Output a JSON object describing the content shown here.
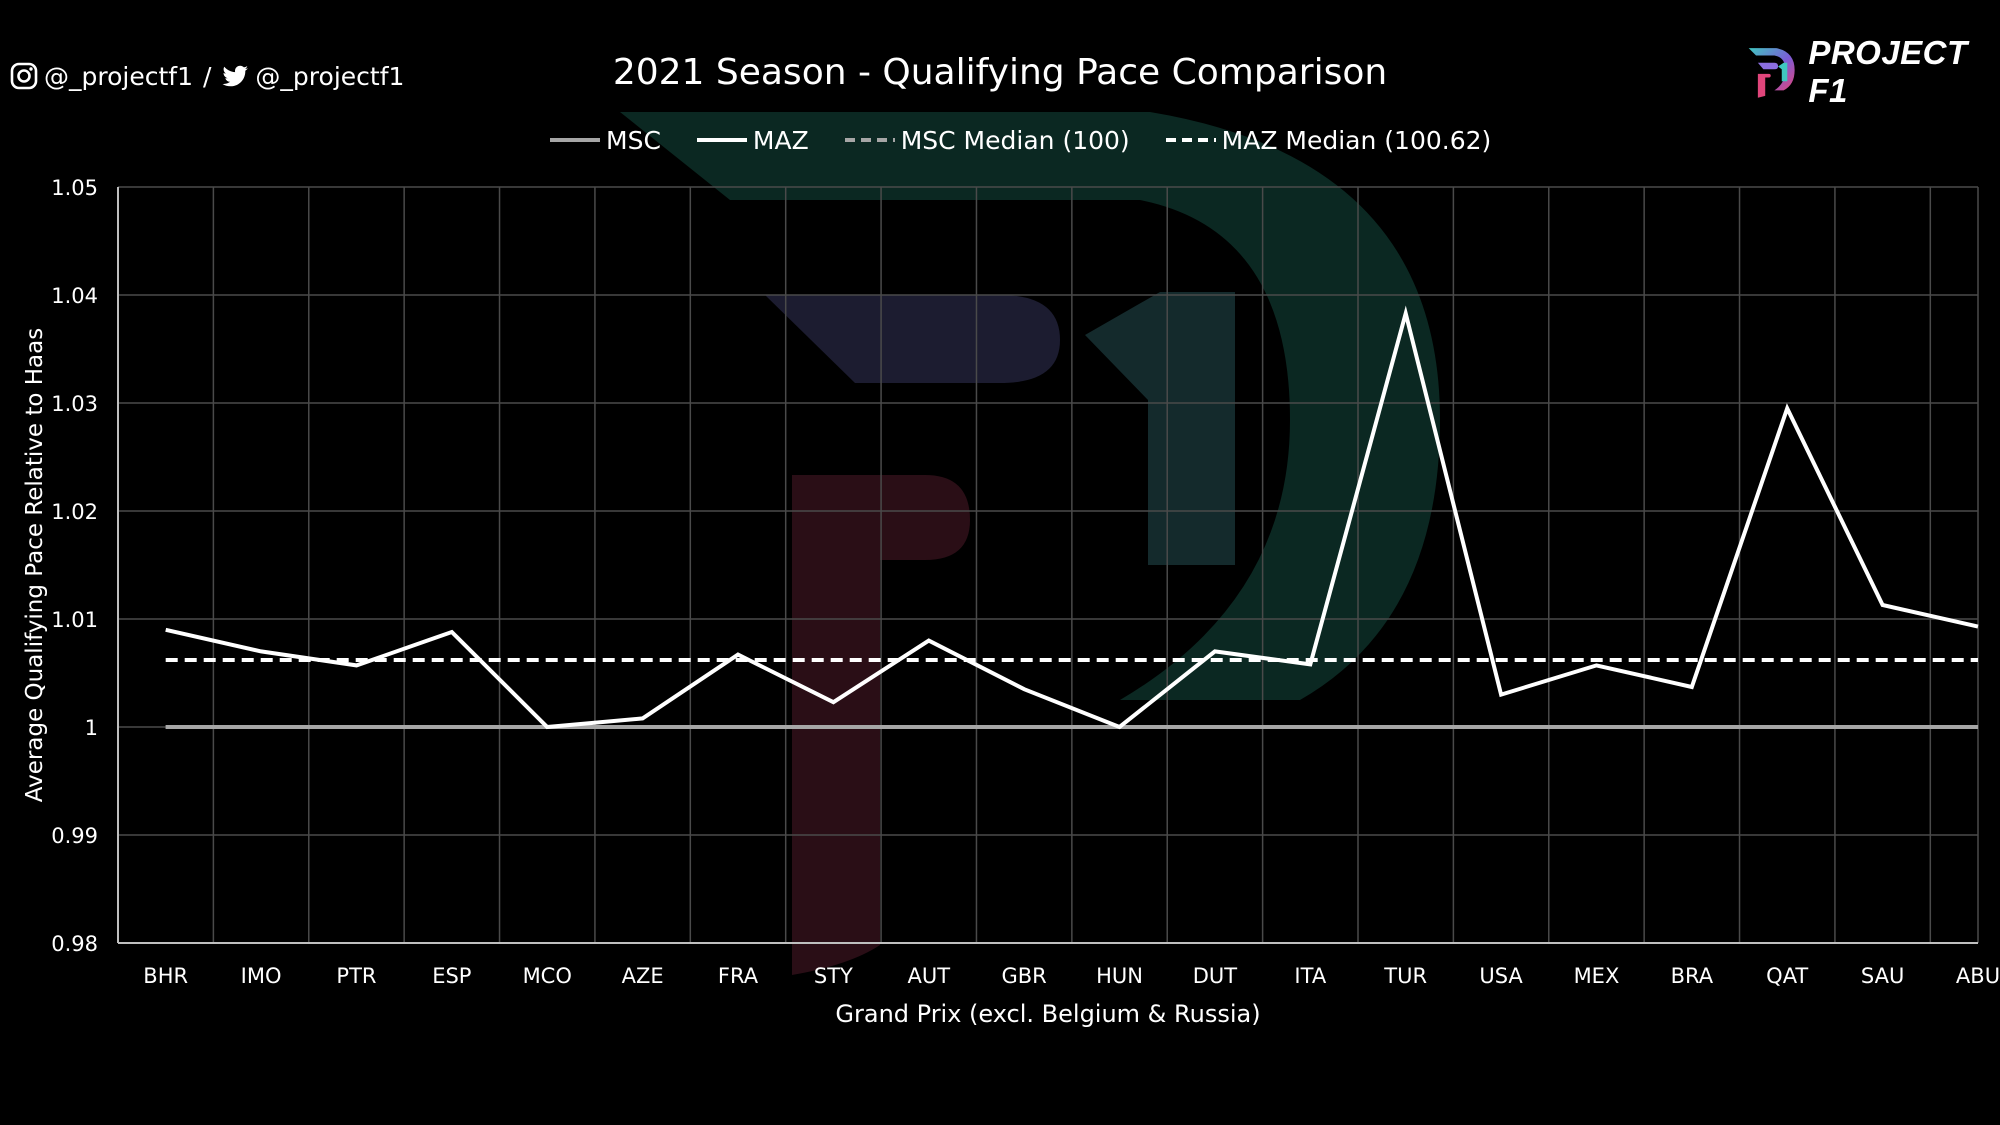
{
  "header": {
    "instagram_handle": "@_projectf1",
    "separator": "/",
    "twitter_handle": "@_projectf1",
    "logo_text": "PROJECT F1"
  },
  "icons": {
    "instagram": "instagram-icon",
    "twitter": "twitter-icon",
    "logo": "project-f1-logo-icon"
  },
  "colors": {
    "background": "#000000",
    "msc_line": "#a6a6a6",
    "maz_line": "#ffffff",
    "grid": "#4a4a4a",
    "axis_text": "#ffffff"
  },
  "chart_data": {
    "type": "line",
    "title": "2021 Season - Qualifying Pace Comparison",
    "xlabel": "Grand Prix (excl. Belgium & Russia)",
    "ylabel": "Average Qualifying Pace Relative to Haas",
    "ylim": [
      0.98,
      1.05
    ],
    "yticks": [
      0.98,
      0.99,
      1,
      1.01,
      1.02,
      1.03,
      1.04,
      1.05
    ],
    "ytick_labels": [
      "0.98",
      "0.99",
      "1",
      "1.01",
      "1.02",
      "1.03",
      "1.04",
      "1.05"
    ],
    "grid": true,
    "legend_position": "top-center",
    "categories": [
      "BHR",
      "IMO",
      "PTR",
      "ESP",
      "MCO",
      "AZE",
      "FRA",
      "STY",
      "AUT",
      "GBR",
      "HUN",
      "DUT",
      "ITA",
      "TUR",
      "USA",
      "MEX",
      "BRA",
      "QAT",
      "SAU",
      "ABU"
    ],
    "series": [
      {
        "name": "MSC",
        "style": "solid",
        "color": "#a6a6a6",
        "values": [
          1,
          1,
          1,
          1,
          1,
          1,
          1,
          1,
          1,
          1,
          1,
          1,
          1,
          1,
          1,
          1,
          1,
          1,
          1,
          1
        ]
      },
      {
        "name": "MAZ",
        "style": "solid",
        "color": "#ffffff",
        "values": [
          1.009,
          1.007,
          1.0057,
          1.0088,
          1.0,
          1.0008,
          1.0067,
          1.0023,
          1.008,
          1.0035,
          1.0,
          1.007,
          1.0058,
          1.0383,
          1.003,
          1.0057,
          1.0037,
          1.0295,
          1.0113,
          1.0093
        ]
      },
      {
        "name": "MSC Median (100)",
        "style": "dashed",
        "color": "#a6a6a6",
        "values": [
          1,
          1,
          1,
          1,
          1,
          1,
          1,
          1,
          1,
          1,
          1,
          1,
          1,
          1,
          1,
          1,
          1,
          1,
          1,
          1
        ]
      },
      {
        "name": "MAZ Median (100.62)",
        "style": "dashed",
        "color": "#ffffff",
        "values": [
          1.0062,
          1.0062,
          1.0062,
          1.0062,
          1.0062,
          1.0062,
          1.0062,
          1.0062,
          1.0062,
          1.0062,
          1.0062,
          1.0062,
          1.0062,
          1.0062,
          1.0062,
          1.0062,
          1.0062,
          1.0062,
          1.0062,
          1.0062
        ]
      }
    ]
  }
}
